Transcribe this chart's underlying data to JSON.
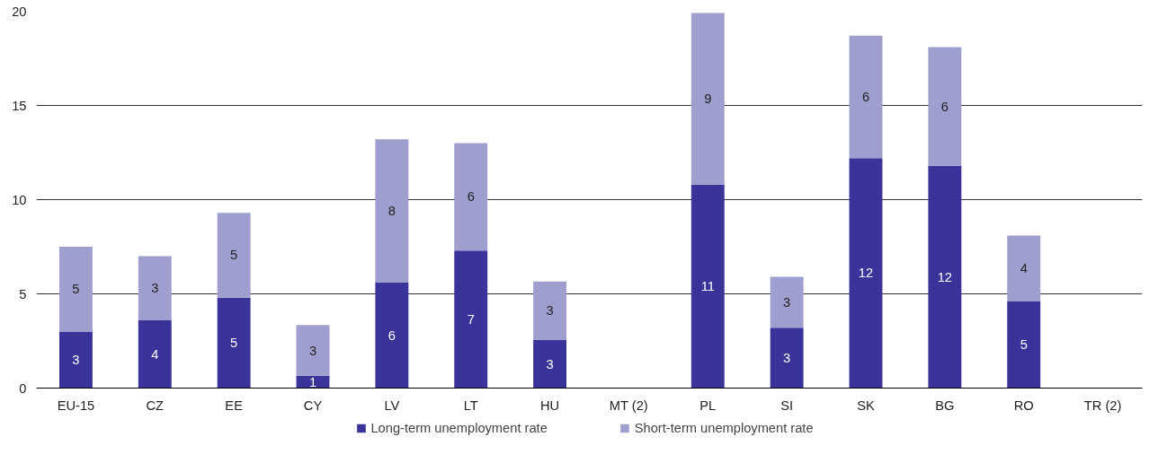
{
  "chart_data": {
    "type": "bar",
    "stacked": true,
    "categories": [
      "EU-15",
      "CZ",
      "EE",
      "CY",
      "LV",
      "LT",
      "HU",
      "MT (2)",
      "PL",
      "SI",
      "SK",
      "BG",
      "RO",
      "TR (2)"
    ],
    "series": [
      {
        "name": "Long-term unemployment rate",
        "color": "#3a3399",
        "values": [
          3.0,
          3.6,
          4.8,
          0.65,
          5.6,
          7.3,
          2.55,
          null,
          10.8,
          3.2,
          12.2,
          11.8,
          4.6,
          null
        ],
        "value_labels": [
          "3",
          "4",
          "5",
          "1",
          "6",
          "7",
          "3",
          null,
          "11",
          "3",
          "12",
          "12",
          "5",
          null
        ]
      },
      {
        "name": "Short-term unemployment rate",
        "color": "#9f9fcf",
        "values": [
          4.5,
          3.4,
          4.5,
          2.7,
          7.6,
          5.7,
          3.1,
          null,
          9.1,
          2.7,
          6.5,
          6.3,
          3.5,
          null
        ],
        "value_labels": [
          "5",
          "3",
          "5",
          "3",
          "8",
          "6",
          "3",
          null,
          "9",
          "3",
          "6",
          "6",
          "4",
          null
        ]
      }
    ],
    "ylim": [
      0,
      20
    ],
    "yticks": [
      0,
      5,
      10,
      15,
      20
    ],
    "grid": "y",
    "legend": "bottom"
  }
}
